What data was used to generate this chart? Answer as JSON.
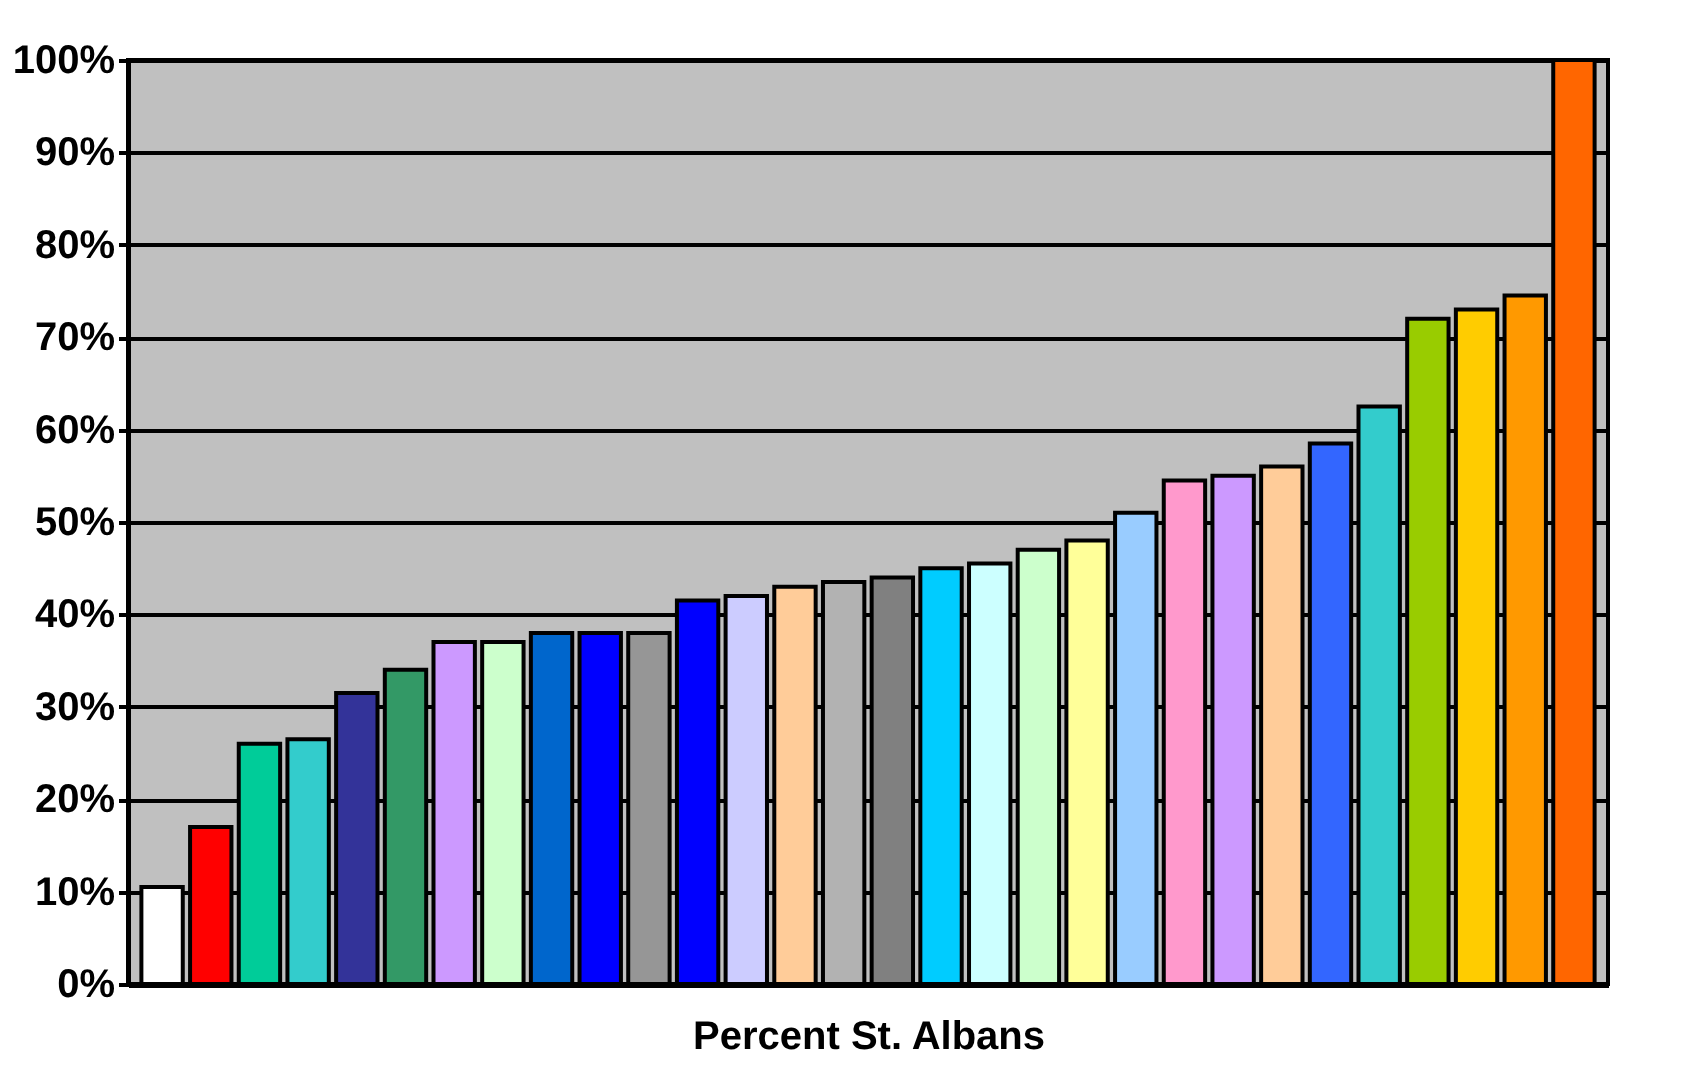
{
  "chart_data": {
    "type": "bar",
    "xlabel": "Percent St. Albans",
    "categories": [
      null,
      null,
      null,
      null,
      null,
      null,
      null,
      null,
      null,
      null,
      null,
      null,
      null,
      null,
      null,
      null,
      null,
      null,
      null,
      null,
      null,
      null,
      null,
      null,
      null,
      null,
      null,
      null,
      null,
      null
    ],
    "values": [
      10.5,
      17,
      26,
      26.5,
      31.5,
      34,
      37,
      37,
      38,
      38,
      38,
      41.5,
      42,
      43,
      43.5,
      44,
      45,
      45.5,
      47,
      48,
      51,
      54.5,
      55,
      56,
      58.5,
      62.5,
      72,
      73,
      74.5,
      100
    ],
    "colors": [
      "#ffffff",
      "#ff0000",
      "#00cc99",
      "#33cccc",
      "#333399",
      "#339966",
      "#cc99ff",
      "#ccffcc",
      "#0066cc",
      "#0000ff",
      "#969696",
      "#0000ff",
      "#ccccff",
      "#ffcc99",
      "#b2b2b2",
      "#808080",
      "#00ccff",
      "#ccffff",
      "#ccffcc",
      "#ffff99",
      "#99ccff",
      "#ff99cc",
      "#cc99ff",
      "#ffcc99",
      "#3366ff",
      "#33cccc",
      "#99cc00",
      "#ffcc00",
      "#ff9900",
      "#ff6600"
    ],
    "ylim": [
      0,
      100
    ],
    "yticks": [
      {
        "value": 0,
        "label": "0%"
      },
      {
        "value": 10,
        "label": "10%"
      },
      {
        "value": 20,
        "label": "20%"
      },
      {
        "value": 30,
        "label": "30%"
      },
      {
        "value": 40,
        "label": "40%"
      },
      {
        "value": 50,
        "label": "50%"
      },
      {
        "value": 60,
        "label": "60%"
      },
      {
        "value": 70,
        "label": "70%"
      },
      {
        "value": 80,
        "label": "80%"
      },
      {
        "value": 90,
        "label": "90%"
      },
      {
        "value": 100,
        "label": "100%"
      }
    ],
    "grid": "y"
  }
}
